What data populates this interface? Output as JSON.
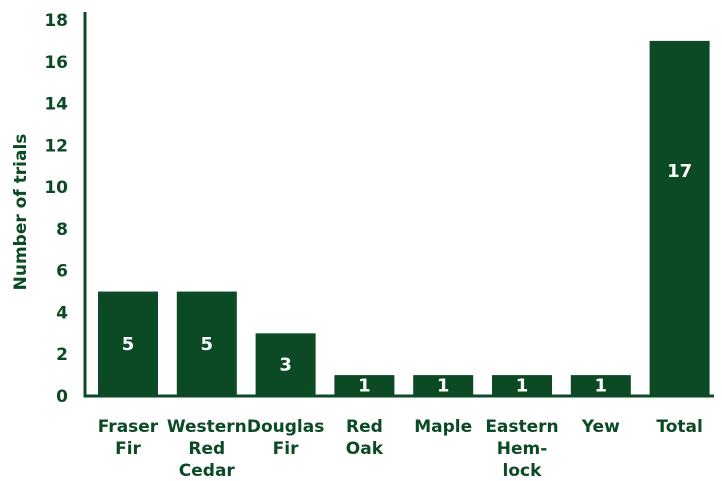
{
  "chart_data": {
    "type": "bar",
    "categories": [
      [
        "Fraser",
        "Fir"
      ],
      [
        "Western",
        "Red",
        "Cedar"
      ],
      [
        "Douglas",
        "Fir"
      ],
      [
        "Red",
        "Oak"
      ],
      [
        "Maple"
      ],
      [
        "Eastern",
        "Hem-",
        "lock"
      ],
      [
        "Yew"
      ],
      [
        "Total"
      ]
    ],
    "values": [
      5,
      5,
      3,
      1,
      1,
      1,
      1,
      17
    ],
    "data_labels": [
      "5",
      "5",
      "3",
      "1",
      "1",
      "1",
      "1",
      "17"
    ],
    "ylabel": "Number of trials",
    "xlabel": "",
    "ylim": [
      0,
      18
    ],
    "yticks": [
      0,
      2,
      4,
      6,
      8,
      10,
      12,
      14,
      16,
      18
    ],
    "grid": false,
    "legend": "none",
    "colors": {
      "bar": "#0b4a25",
      "axis": "#0b4a25",
      "text": "#0b4a25",
      "data_label": "#ffffff"
    }
  }
}
